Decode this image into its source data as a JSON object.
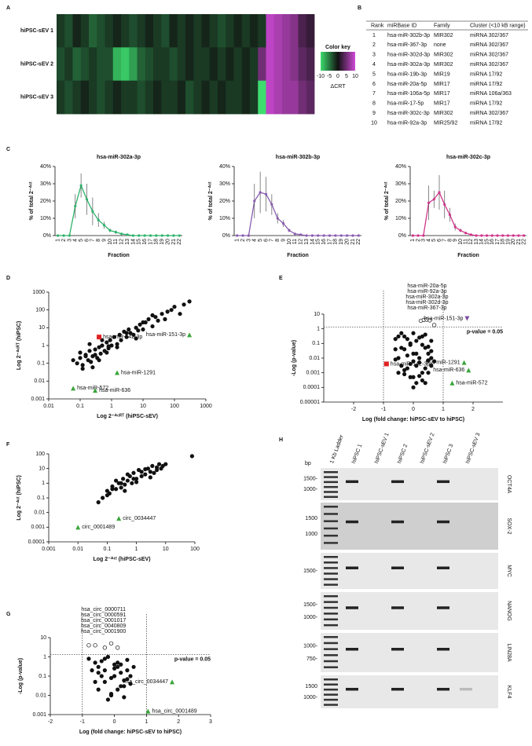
{
  "chart_data": [
    {
      "type": "heatmap",
      "panel": "A",
      "rows": [
        "hiPSC-sEV 1",
        "hiPSC-sEV 2",
        "hiPSC-sEV 3"
      ],
      "values": [
        [
          -2,
          -3,
          -1,
          -2,
          -4,
          -3,
          -2,
          -1,
          -2,
          -3,
          -2,
          -1,
          -2,
          -3,
          -1,
          -2,
          -1,
          -2,
          -1,
          -2,
          -3,
          -2,
          -1,
          -2,
          -1,
          -2,
          9,
          8,
          7,
          6,
          3,
          2
        ],
        [
          -3,
          -2,
          -4,
          -3,
          -2,
          -3,
          -3,
          -8,
          -9,
          -7,
          -4,
          -3,
          -2,
          -2,
          -3,
          -2,
          -1,
          -2,
          -2,
          -1,
          -2,
          -1,
          -2,
          -1,
          -2,
          5,
          9,
          8,
          7,
          6,
          4,
          3
        ],
        [
          -2,
          -3,
          -2,
          -1,
          -2,
          -3,
          -2,
          -1,
          -2,
          -2,
          -3,
          -2,
          -1,
          -2,
          -2,
          -1,
          -3,
          -2,
          -1,
          -2,
          -1,
          -2,
          -2,
          -1,
          -2,
          -10,
          9,
          8,
          7,
          7,
          5,
          4
        ]
      ],
      "colorbar_title": "Color key",
      "colorbar_label": "ΔCRT",
      "colorbar_lim": [
        -10,
        10
      ],
      "colorbar_ticks": [
        -10,
        -5,
        0,
        5,
        10
      ],
      "low_color": "#3ddc6e",
      "mid_color": "#111111",
      "high_color": "#d04ad8"
    },
    {
      "type": "line",
      "panel": "C",
      "title": "hsa-miR-302a-3p",
      "color": "#2db36b",
      "xlabel": "Fraction",
      "ylabel": "% of total 2⁻ᐞᶜᵗ",
      "categories": [
        "1",
        "2",
        "3",
        "4",
        "5",
        "6",
        "7",
        "8",
        "9",
        "10",
        "11",
        "12",
        "13",
        "14",
        "15",
        "16",
        "17",
        "18",
        "19",
        "20",
        "21",
        "22"
      ],
      "values": [
        0,
        0,
        0,
        17,
        29,
        21,
        14,
        9,
        6,
        3,
        2,
        1,
        0.5,
        0,
        0,
        0,
        0,
        0,
        0,
        0,
        0,
        0
      ],
      "errors": [
        0,
        0,
        0,
        7,
        7,
        9,
        8,
        4,
        2,
        1,
        1,
        0,
        0,
        0,
        0,
        0,
        0,
        0,
        0,
        0,
        0,
        0
      ],
      "ylim": [
        0,
        40
      ],
      "yticks": [
        {
          "value": 0,
          "label": "0%"
        },
        {
          "value": 10,
          "label": "10%"
        },
        {
          "value": 20,
          "label": "20%"
        },
        {
          "value": 30,
          "label": "30%"
        },
        {
          "value": 40,
          "label": "40%"
        }
      ]
    },
    {
      "type": "line",
      "title": "hsa-miR-302b-3p",
      "color": "#8a5db0",
      "xlabel": "Fraction",
      "ylabel": "% of total 2⁻ᐞᶜᵗ",
      "categories": [
        "1",
        "2",
        "3",
        "4",
        "5",
        "6",
        "7",
        "8",
        "9",
        "10",
        "11",
        "12",
        "13",
        "14",
        "15",
        "16",
        "17",
        "18",
        "19",
        "20",
        "21",
        "22"
      ],
      "values": [
        0,
        0,
        0,
        20,
        25,
        24,
        18,
        10,
        7,
        3,
        1,
        0.5,
        0,
        0,
        0,
        0,
        0,
        0,
        0,
        0,
        0,
        0
      ],
      "errors": [
        0,
        0,
        0,
        10,
        12,
        10,
        6,
        3,
        2,
        1,
        0,
        0,
        0,
        0,
        0,
        0,
        0,
        0,
        0,
        0,
        0,
        0
      ],
      "ylim": [
        0,
        40
      ],
      "yticks": [
        {
          "value": 0,
          "label": "0%"
        },
        {
          "value": 10,
          "label": "10%"
        },
        {
          "value": 20,
          "label": "20%"
        },
        {
          "value": 30,
          "label": "30%"
        },
        {
          "value": 40,
          "label": "40%"
        }
      ]
    },
    {
      "type": "line",
      "title": "hsa-miR-302c-3p",
      "color": "#d0358a",
      "xlabel": "Fraction",
      "ylabel": "% of total 2⁻ᐞᶜᵗ",
      "categories": [
        "1",
        "2",
        "3",
        "4",
        "5",
        "6",
        "7",
        "8",
        "9",
        "10",
        "11",
        "12",
        "13",
        "14",
        "15",
        "16",
        "17",
        "18",
        "19",
        "20",
        "21",
        "22"
      ],
      "values": [
        0,
        0,
        0,
        19,
        21,
        25,
        18,
        12,
        5,
        3,
        1.5,
        0.5,
        0,
        0,
        0,
        0,
        0,
        0,
        0,
        0,
        0,
        0
      ],
      "errors": [
        0,
        0,
        0,
        10,
        5,
        10,
        8,
        4,
        2,
        1,
        0,
        0,
        0,
        0,
        0,
        0,
        0,
        0,
        0,
        0,
        0,
        0
      ],
      "ylim": [
        0,
        40
      ],
      "yticks": [
        {
          "value": 0,
          "label": "0%"
        },
        {
          "value": 10,
          "label": "10%"
        },
        {
          "value": 20,
          "label": "20%"
        },
        {
          "value": 30,
          "label": "30%"
        },
        {
          "value": 40,
          "label": "40%"
        }
      ]
    },
    {
      "type": "scatter",
      "panel": "D",
      "xlabel": "Log 2⁻ᐞᶜᴿᵀ (hiPSC-sEV)",
      "ylabel": "Log 2⁻ᐞᶜᴿᵀ (hiPSC)",
      "log_x": true,
      "log_y": true,
      "color": "#111111",
      "x": [
        0.06,
        0.08,
        0.1,
        0.12,
        0.15,
        0.18,
        0.2,
        0.22,
        0.25,
        0.3,
        0.35,
        0.4,
        0.45,
        0.5,
        0.6,
        0.7,
        0.8,
        0.9,
        1,
        1.2,
        1.5,
        1.8,
        2,
        2.5,
        3,
        3.5,
        4,
        5,
        6,
        7,
        8,
        10,
        12,
        15,
        20,
        25,
        30,
        40,
        50,
        60,
        80,
        100,
        150,
        200,
        300,
        0.1,
        0.15,
        0.2,
        0.3,
        0.5,
        0.8,
        1.5,
        3,
        6,
        10,
        20,
        0.12,
        0.25,
        0.4,
        0.7
      ],
      "y": [
        0.15,
        0.1,
        0.2,
        0.08,
        0.3,
        0.15,
        0.5,
        0.12,
        0.25,
        0.6,
        0.2,
        0.8,
        0.35,
        1,
        0.5,
        1.5,
        0.7,
        2,
        1,
        3,
        1.2,
        4,
        2,
        6,
        3,
        8,
        5,
        4,
        10,
        7,
        15,
        8,
        20,
        30,
        12,
        40,
        25,
        60,
        30,
        80,
        100,
        150,
        60,
        200,
        300,
        0.4,
        0.25,
        1.2,
        0.3,
        2,
        0.9,
        0.8,
        5,
        2.5,
        20,
        50,
        0.05,
        0.06,
        0.15,
        0.4
      ],
      "xlim": [
        0.01,
        1000
      ],
      "xticks": [
        0.01,
        0.1,
        1,
        10,
        100,
        1000
      ],
      "ylim": [
        0.001,
        1000
      ],
      "yticks": [
        0.001,
        0.01,
        0.1,
        1,
        10,
        100,
        1000
      ],
      "highlights": [
        {
          "label": "hsa-miR-142-3p",
          "x": 0.4,
          "y": 3,
          "color": "#e02020",
          "marker": "square"
        },
        {
          "label": "hsa-miR-151-3p",
          "x": 300,
          "y": 4,
          "color": "#3aa53a",
          "marker": "triangle"
        },
        {
          "label": "hsa-miR-1291",
          "x": 1.5,
          "y": 0.03,
          "color": "#3aa53a",
          "marker": "triangle"
        },
        {
          "label": "hsa-miR-572",
          "x": 0.06,
          "y": 0.004,
          "color": "#3aa53a",
          "marker": "triangle"
        },
        {
          "label": "hsa-miR-636",
          "x": 0.3,
          "y": 0.003,
          "color": "#3aa53a",
          "marker": "triangle"
        }
      ]
    },
    {
      "type": "scatter",
      "panel": "E",
      "xlabel": "Log (fold change: hiPSC-sEV to hiPSC)",
      "ylabel": "-Log (p-value)",
      "log_x": false,
      "log_y": true,
      "color": "#111111",
      "x": [
        -0.6,
        -0.5,
        -0.4,
        -0.3,
        -0.2,
        -0.1,
        0,
        0.1,
        0.2,
        0.3,
        0.4,
        0.5,
        0.6,
        0.7,
        -0.5,
        -0.3,
        -0.1,
        0.1,
        0.3,
        0.5,
        -0.4,
        -0.2,
        0,
        0.2,
        0.4,
        0.6,
        -0.6,
        -0.3,
        0,
        0.3,
        0.6,
        -0.4,
        -0.1,
        0.2,
        0.5,
        -0.2,
        0.1,
        0.4,
        -0.5,
        0,
        0.3,
        -0.3,
        0.2,
        0.5,
        -0.1,
        0.4,
        -0.6,
        0.1,
        0.6,
        0
      ],
      "y": [
        0.2,
        0.01,
        0.05,
        0.3,
        0.002,
        0.1,
        0.5,
        0.02,
        0.005,
        0.08,
        0.4,
        0.001,
        0.03,
        0.006,
        0.3,
        0.0008,
        0.004,
        0.15,
        0.0003,
        0.06,
        0.003,
        0.2,
        0.0001,
        0.01,
        0.002,
        0.15,
        0.008,
        0.04,
        0.02,
        0.001,
        0.003,
        0.5,
        0.0005,
        0.25,
        0.007,
        0.015,
        0.0002,
        0.05,
        0.001,
        0.006,
        0.3,
        0.0015,
        0.0006,
        0.02,
        0.08,
        0.0002,
        0.04,
        0.003,
        0.01,
        0.0005
      ],
      "xlim": [
        -3,
        3
      ],
      "xticks": [
        -2,
        -1,
        0,
        1,
        2
      ],
      "ylim": [
        1e-05,
        10
      ],
      "yticks": [
        1e-05,
        0.0001,
        0.001,
        0.01,
        0.1,
        1,
        10
      ],
      "threshold": 1.3,
      "threshold_label": "p-value = 0.05",
      "vlines": [
        -1,
        1
      ],
      "open_points": {
        "x": [
          0.25,
          0.35,
          0.45,
          0.55,
          0.7
        ],
        "y": [
          3.5,
          4,
          4.2,
          3.8,
          1.8
        ]
      },
      "open_labels": [
        "hsa-miR-20a-5p",
        "hsa-miR-92a-3p",
        "hsa-miR-302a-3p",
        "hsa-miR-302d-3p",
        "hsa-miR-367-3p"
      ],
      "highlights": [
        {
          "label": "hsa-miR-142-3p",
          "x": -0.9,
          "y": 0.004,
          "color": "#e02020",
          "marker": "square"
        },
        {
          "label": "hsa-miR-151-3p",
          "x": 1.8,
          "y": 5,
          "color": "#7a4fa0",
          "marker": "triangle-down"
        },
        {
          "label": "hsa-miR-1291",
          "x": 1.7,
          "y": 0.005,
          "color": "#3aa53a",
          "marker": "triangle"
        },
        {
          "label": "hsa-miR-636",
          "x": 1.85,
          "y": 0.0015,
          "color": "#3aa53a",
          "marker": "triangle"
        },
        {
          "label": "hsa-miR-572",
          "x": 1.3,
          "y": 0.0002,
          "color": "#3aa53a",
          "marker": "triangle"
        }
      ]
    },
    {
      "type": "scatter",
      "panel": "F",
      "xlabel": "Log 2⁻ᐞᶜᵗ (hiPSC-sEV)",
      "ylabel": "Log 2⁻ᐞᶜᵗ (hiPSC)",
      "log_x": true,
      "log_y": true,
      "color": "#111111",
      "x": [
        0.05,
        0.07,
        0.1,
        0.12,
        0.15,
        0.2,
        0.25,
        0.3,
        0.35,
        0.4,
        0.5,
        0.6,
        0.7,
        0.8,
        1,
        1.2,
        1.5,
        2,
        2.5,
        3,
        3.5,
        4,
        5,
        6,
        7,
        8,
        10,
        0.1,
        0.2,
        0.3,
        0.5,
        0.8,
        1.5,
        3,
        5,
        0.15,
        0.4,
        1,
        2,
        80
      ],
      "y": [
        0.05,
        0.1,
        0.3,
        0.2,
        0.6,
        0.4,
        1,
        0.5,
        2,
        0.8,
        1.5,
        3,
        1,
        5,
        2,
        8,
        3,
        4,
        10,
        6,
        15,
        5,
        8,
        20,
        10,
        15,
        20,
        0.15,
        1.5,
        1,
        4,
        2,
        6,
        2.5,
        12,
        0.4,
        0.3,
        1.2,
        9,
        70
      ],
      "xlim": [
        0.001,
        100
      ],
      "xticks": [
        0.001,
        0.01,
        0.1,
        1,
        10,
        100
      ],
      "ylim": [
        0.0001,
        100
      ],
      "yticks": [
        0.0001,
        0.001,
        0.01,
        0.1,
        1,
        10,
        100
      ],
      "highlights": [
        {
          "label": "circ_0034447",
          "x": 0.25,
          "y": 0.004,
          "color": "#3aa53a",
          "marker": "triangle"
        },
        {
          "label": "circ_0001489",
          "x": 0.01,
          "y": 0.001,
          "color": "#3aa53a",
          "marker": "triangle"
        }
      ]
    },
    {
      "type": "scatter",
      "panel": "G",
      "xlabel": "Log (fold change: hiPSC-sEV to hiPSC)",
      "ylabel": "-Log (p-value)",
      "log_x": false,
      "log_y": true,
      "color": "#111111",
      "x": [
        -0.8,
        -0.6,
        -0.5,
        -0.4,
        -0.3,
        -0.2,
        -0.1,
        0,
        0.1,
        0.2,
        0.3,
        0.4,
        0.5,
        -0.7,
        -0.5,
        -0.3,
        -0.1,
        0.1,
        0.3,
        0.5,
        -0.6,
        -0.4,
        -0.2,
        0,
        0.2,
        0.4,
        -0.3,
        0,
        0.3,
        -0.1,
        0.2,
        0.6,
        -0.5,
        0.1,
        0.4
      ],
      "y": [
        0.8,
        0.05,
        0.3,
        0.6,
        0.2,
        1,
        0.08,
        0.4,
        0.5,
        0.15,
        0.03,
        0.7,
        0.1,
        0.2,
        0.02,
        0.05,
        0.01,
        0.3,
        0.008,
        0.04,
        0.5,
        0.1,
        0.006,
        0.25,
        0.03,
        0.2,
        0.8,
        0.1,
        0.06,
        0.012,
        0.4,
        0.3,
        0.15,
        0.02,
        0.07
      ],
      "xlim": [
        -2,
        3
      ],
      "xticks": [
        -2,
        -1,
        0,
        1,
        2,
        3
      ],
      "ylim": [
        0.001,
        10
      ],
      "yticks": [
        0.001,
        0.01,
        0.1,
        1,
        10
      ],
      "threshold": 1.3,
      "threshold_label": "p-value = 0.05",
      "vlines": [
        -1,
        1
      ],
      "open_points": {
        "x": [
          -0.8,
          -0.6,
          -0.3,
          -0.1,
          0.1
        ],
        "y": [
          4,
          4,
          3,
          5,
          3
        ]
      },
      "open_labels": [
        "hsa_circ_0000711",
        "hsa_circ_0000591",
        "hsa_circ_0001017",
        "hsa_circ_0040809",
        "hsa_circ_0001900"
      ],
      "highlights": [
        {
          "label": "hsa_circ_0034447",
          "x": 1.8,
          "y": 0.05,
          "color": "#3aa53a",
          "marker": "triangle"
        },
        {
          "label": "hsa_circ_0001489",
          "x": 1.05,
          "y": 0.0015,
          "color": "#3aa53a",
          "marker": "triangle"
        }
      ]
    }
  ],
  "table": {
    "panel": "B",
    "header": [
      "Rank",
      "miRBase ID",
      "Family",
      "Cluster (<10 kB range)"
    ],
    "rows": [
      [
        "1",
        "hsa-miR-302b-3p",
        "MIR302",
        "miRNA 302/367"
      ],
      [
        "2",
        "hsa-miR-367-3p",
        "none",
        "miRNA 302/367"
      ],
      [
        "3",
        "hsa-miR-302d-3p",
        "MIR302",
        "miRNA 302/367"
      ],
      [
        "4",
        "hsa-miR-302a-3p",
        "MIR302",
        "miRNA 302/367"
      ],
      [
        "5",
        "hsa-miR-19b-3p",
        "MIR19",
        "miRNA 17/92"
      ],
      [
        "6",
        "hsa-miR-20a-5p",
        "MIR17",
        "miRNA 17/92"
      ],
      [
        "7",
        "hsa-miR-106a-5p",
        "MIR17",
        "miRNA 106a/363"
      ],
      [
        "8",
        "hsa-miR-17-5p",
        "MIR17",
        "miRNA 17/92"
      ],
      [
        "9",
        "hsa-miR-302c-3p",
        "MIR302",
        "miRNA 302/367"
      ],
      [
        "10",
        "hsa-miR-92a-3p",
        "MIR25/92",
        "miRNA 17/92"
      ]
    ]
  },
  "gel": {
    "panel": "H",
    "unit": "bp",
    "lanes": [
      "1 Kb Ladder",
      "hiPSC 1",
      "hiPSC-sEV 1",
      "hiPSC 2",
      "hiPSC-sEV 2",
      "hiPSC 3",
      "hiPSC-sEV 3"
    ],
    "rows": [
      {
        "gene": "OCT4A",
        "markers": [
          "1500-",
          "1000-"
        ],
        "bands": [
          1,
          3,
          5
        ]
      },
      {
        "gene": "SOX-2",
        "markers": [
          "1500",
          "1000"
        ],
        "bands": [
          1,
          3,
          5
        ]
      },
      {
        "gene": "MYC",
        "markers": [
          "1500-"
        ],
        "bands": [
          1,
          3,
          5
        ]
      },
      {
        "gene": "NANOG",
        "markers": [
          "1500-",
          "1000-"
        ],
        "bands": [
          1,
          3,
          5
        ]
      },
      {
        "gene": "LIN28A",
        "markers": [
          "1000-",
          "750-"
        ],
        "bands": [
          1,
          3,
          5
        ]
      },
      {
        "gene": "KLF4",
        "markers": [
          "1500",
          "1000-"
        ],
        "bands": [
          1,
          3,
          5,
          6
        ]
      }
    ]
  }
}
